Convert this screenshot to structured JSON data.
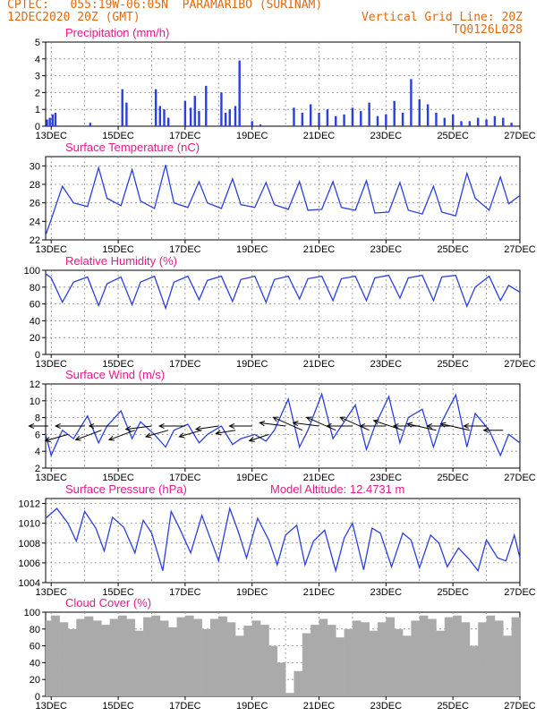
{
  "header": {
    "line1_left": "CPTEC:   055:19W-06:05N  PARAMARIBO (SURINAM)",
    "line2_left": "12DEC2020 20Z (GMT)",
    "line2_right": "Vertical Grid Line: 20Z",
    "line3_right": "TQ0126L028"
  },
  "colors": {
    "header": "#e06a10",
    "title": "#e8198b",
    "series": "#2a3fe0",
    "cloud": "#aaaaaa",
    "wind_arrow": "#000000"
  },
  "time_axis": {
    "start": "2020-12-12T20:00Z",
    "end": "2020-12-27T00:00Z",
    "tick_labels": [
      "13DEC",
      "15DEC",
      "17DEC",
      "19DEC",
      "21DEC",
      "23DEC",
      "25DEC",
      "27DEC"
    ],
    "tick_dates": [
      "2020-12-13",
      "2020-12-15",
      "2020-12-17",
      "2020-12-19",
      "2020-12-21",
      "2020-12-23",
      "2020-12-25",
      "2020-12-27"
    ],
    "grid_dates": [
      "2020-12-13",
      "2020-12-14",
      "2020-12-15",
      "2020-12-16",
      "2020-12-17",
      "2020-12-18",
      "2020-12-19",
      "2020-12-20",
      "2020-12-21",
      "2020-12-22",
      "2020-12-23",
      "2020-12-24",
      "2020-12-25",
      "2020-12-26",
      "2020-12-27"
    ]
  },
  "chart_data": [
    {
      "id": "precip",
      "type": "bar",
      "title": "Precipitation (mm/h)",
      "ylim": [
        0,
        5
      ],
      "yticks": [
        0,
        1,
        2,
        3,
        4,
        5
      ],
      "grid": true,
      "x": [
        "2020-12-12T21:00Z",
        "2020-12-12T23:00Z",
        "2020-12-13T01:00Z",
        "2020-12-13T03:00Z",
        "2020-12-14T04:00Z",
        "2020-12-15T03:00Z",
        "2020-12-15T06:00Z",
        "2020-12-16T03:00Z",
        "2020-12-16T06:00Z",
        "2020-12-16T09:00Z",
        "2020-12-16T12:00Z",
        "2020-12-17T00:00Z",
        "2020-12-17T04:00Z",
        "2020-12-17T07:00Z",
        "2020-12-17T10:00Z",
        "2020-12-17T15:00Z",
        "2020-12-18T02:00Z",
        "2020-12-18T05:00Z",
        "2020-12-18T08:00Z",
        "2020-12-18T12:00Z",
        "2020-12-18T15:00Z",
        "2020-12-19T00:00Z",
        "2020-12-19T06:00Z",
        "2020-12-20T06:00Z",
        "2020-12-20T12:00Z",
        "2020-12-20T18:00Z",
        "2020-12-21T00:00Z",
        "2020-12-21T06:00Z",
        "2020-12-21T12:00Z",
        "2020-12-21T18:00Z",
        "2020-12-22T00:00Z",
        "2020-12-22T06:00Z",
        "2020-12-22T12:00Z",
        "2020-12-22T18:00Z",
        "2020-12-23T00:00Z",
        "2020-12-23T06:00Z",
        "2020-12-23T12:00Z",
        "2020-12-23T18:00Z",
        "2020-12-24T00:00Z",
        "2020-12-24T06:00Z",
        "2020-12-24T12:00Z",
        "2020-12-24T18:00Z",
        "2020-12-25T00:00Z",
        "2020-12-25T06:00Z",
        "2020-12-25T12:00Z",
        "2020-12-25T18:00Z",
        "2020-12-26T00:00Z",
        "2020-12-26T06:00Z",
        "2020-12-26T12:00Z",
        "2020-12-26T18:00Z"
      ],
      "values": [
        0.4,
        0.5,
        0.7,
        0.8,
        0.2,
        2.2,
        1.4,
        2.2,
        1.2,
        1.0,
        0.5,
        1.5,
        1.1,
        1.8,
        0.9,
        2.4,
        2.0,
        0.8,
        1.0,
        1.2,
        3.9,
        0.3,
        0.1,
        1.1,
        0.8,
        1.3,
        0.8,
        1.0,
        0.6,
        0.7,
        1.1,
        0.9,
        1.4,
        0.6,
        0.7,
        1.5,
        0.8,
        2.8,
        1.6,
        1.3,
        0.8,
        0.5,
        0.7,
        0.3,
        0.3,
        0.5,
        0.4,
        0.6,
        0.5,
        0.2
      ]
    },
    {
      "id": "temp",
      "type": "line",
      "title": "Surface Temperature (nC)",
      "ylim": [
        22,
        31
      ],
      "yticks": [
        22,
        24,
        26,
        28,
        30
      ],
      "grid": true,
      "x": [
        "2020-12-12T20:00Z",
        "2020-12-13T00:00Z",
        "2020-12-13T08:00Z",
        "2020-12-13T16:00Z",
        "2020-12-14T02:00Z",
        "2020-12-14T10:00Z",
        "2020-12-14T16:00Z",
        "2020-12-15T02:00Z",
        "2020-12-15T10:00Z",
        "2020-12-15T16:00Z",
        "2020-12-16T02:00Z",
        "2020-12-16T10:00Z",
        "2020-12-16T16:00Z",
        "2020-12-17T02:00Z",
        "2020-12-17T10:00Z",
        "2020-12-17T16:00Z",
        "2020-12-18T02:00Z",
        "2020-12-18T10:00Z",
        "2020-12-18T16:00Z",
        "2020-12-19T02:00Z",
        "2020-12-19T10:00Z",
        "2020-12-19T16:00Z",
        "2020-12-20T02:00Z",
        "2020-12-20T10:00Z",
        "2020-12-20T16:00Z",
        "2020-12-21T02:00Z",
        "2020-12-21T10:00Z",
        "2020-12-21T16:00Z",
        "2020-12-22T02:00Z",
        "2020-12-22T10:00Z",
        "2020-12-22T16:00Z",
        "2020-12-23T02:00Z",
        "2020-12-23T10:00Z",
        "2020-12-23T16:00Z",
        "2020-12-24T02:00Z",
        "2020-12-24T10:00Z",
        "2020-12-24T16:00Z",
        "2020-12-25T02:00Z",
        "2020-12-25T10:00Z",
        "2020-12-25T16:00Z",
        "2020-12-26T02:00Z",
        "2020-12-26T10:00Z",
        "2020-12-26T16:00Z",
        "2020-12-27T00:00Z"
      ],
      "values": [
        22.5,
        24.2,
        27.8,
        26.0,
        25.6,
        29.8,
        26.5,
        25.7,
        29.6,
        26.2,
        25.4,
        30.1,
        26.0,
        25.5,
        28.3,
        26.0,
        25.4,
        28.6,
        25.8,
        25.5,
        28.2,
        25.8,
        25.3,
        28.3,
        25.2,
        25.3,
        28.3,
        25.5,
        25.2,
        28.4,
        24.9,
        25.0,
        28.2,
        25.2,
        24.8,
        27.8,
        25.0,
        24.6,
        29.2,
        26.5,
        25.2,
        28.8,
        25.9,
        26.8
      ]
    },
    {
      "id": "rh",
      "type": "line",
      "title": "Relative Humidity (%)",
      "ylim": [
        0,
        100
      ],
      "yticks": [
        0,
        20,
        40,
        60,
        80,
        100
      ],
      "grid": true,
      "x": [
        "2020-12-12T20:00Z",
        "2020-12-13T00:00Z",
        "2020-12-13T08:00Z",
        "2020-12-13T16:00Z",
        "2020-12-14T02:00Z",
        "2020-12-14T10:00Z",
        "2020-12-14T16:00Z",
        "2020-12-15T02:00Z",
        "2020-12-15T10:00Z",
        "2020-12-15T16:00Z",
        "2020-12-16T02:00Z",
        "2020-12-16T10:00Z",
        "2020-12-16T16:00Z",
        "2020-12-17T02:00Z",
        "2020-12-17T10:00Z",
        "2020-12-17T16:00Z",
        "2020-12-18T02:00Z",
        "2020-12-18T10:00Z",
        "2020-12-18T16:00Z",
        "2020-12-19T02:00Z",
        "2020-12-19T10:00Z",
        "2020-12-19T16:00Z",
        "2020-12-20T02:00Z",
        "2020-12-20T10:00Z",
        "2020-12-20T16:00Z",
        "2020-12-21T02:00Z",
        "2020-12-21T10:00Z",
        "2020-12-21T16:00Z",
        "2020-12-22T02:00Z",
        "2020-12-22T10:00Z",
        "2020-12-22T16:00Z",
        "2020-12-23T02:00Z",
        "2020-12-23T10:00Z",
        "2020-12-23T16:00Z",
        "2020-12-24T02:00Z",
        "2020-12-24T10:00Z",
        "2020-12-24T16:00Z",
        "2020-12-25T02:00Z",
        "2020-12-25T10:00Z",
        "2020-12-25T16:00Z",
        "2020-12-26T02:00Z",
        "2020-12-26T10:00Z",
        "2020-12-26T16:00Z",
        "2020-12-27T00:00Z"
      ],
      "values": [
        96,
        91,
        62,
        86,
        92,
        58,
        84,
        92,
        59,
        86,
        93,
        55,
        86,
        93,
        65,
        88,
        93,
        63,
        89,
        93,
        62,
        89,
        93,
        66,
        90,
        93,
        64,
        90,
        93,
        64,
        91,
        94,
        67,
        91,
        94,
        64,
        92,
        94,
        57,
        80,
        93,
        64,
        82,
        74
      ]
    },
    {
      "id": "wind",
      "type": "line",
      "title": "Surface Wind (m/s)",
      "ylim": [
        2,
        12
      ],
      "yticks": [
        2,
        4,
        6,
        8,
        10,
        12
      ],
      "grid": true,
      "x": [
        "2020-12-12T20:00Z",
        "2020-12-13T00:00Z",
        "2020-12-13T08:00Z",
        "2020-12-13T16:00Z",
        "2020-12-14T02:00Z",
        "2020-12-14T10:00Z",
        "2020-12-14T16:00Z",
        "2020-12-15T02:00Z",
        "2020-12-15T10:00Z",
        "2020-12-15T16:00Z",
        "2020-12-16T02:00Z",
        "2020-12-16T10:00Z",
        "2020-12-16T16:00Z",
        "2020-12-17T02:00Z",
        "2020-12-17T10:00Z",
        "2020-12-17T16:00Z",
        "2020-12-18T02:00Z",
        "2020-12-18T10:00Z",
        "2020-12-18T16:00Z",
        "2020-12-19T02:00Z",
        "2020-12-19T10:00Z",
        "2020-12-19T16:00Z",
        "2020-12-20T02:00Z",
        "2020-12-20T10:00Z",
        "2020-12-20T16:00Z",
        "2020-12-21T02:00Z",
        "2020-12-21T10:00Z",
        "2020-12-21T16:00Z",
        "2020-12-22T02:00Z",
        "2020-12-22T10:00Z",
        "2020-12-22T16:00Z",
        "2020-12-23T02:00Z",
        "2020-12-23T10:00Z",
        "2020-12-23T16:00Z",
        "2020-12-24T02:00Z",
        "2020-12-24T10:00Z",
        "2020-12-24T16:00Z",
        "2020-12-25T02:00Z",
        "2020-12-25T10:00Z",
        "2020-12-25T16:00Z",
        "2020-12-26T02:00Z",
        "2020-12-26T10:00Z",
        "2020-12-26T16:00Z",
        "2020-12-27T00:00Z"
      ],
      "values": [
        6.0,
        3.5,
        6.5,
        5.5,
        8.2,
        5.0,
        7.0,
        8.8,
        5.5,
        7.5,
        6.0,
        4.5,
        6.5,
        7.2,
        5.0,
        6.0,
        7.0,
        4.8,
        5.5,
        6.0,
        5.2,
        6.5,
        10.2,
        4.5,
        6.5,
        10.8,
        5.5,
        7.0,
        9.5,
        4.2,
        7.0,
        10.5,
        5.0,
        8.0,
        9.0,
        4.5,
        7.5,
        10.7,
        4.5,
        8.5,
        6.5,
        3.5,
        6.0,
        5.0
      ]
    },
    {
      "id": "pressure",
      "type": "line",
      "title": "Surface Pressure (hPa)",
      "annotation": "Model Altitude: 12.4731 m",
      "ylim": [
        1004,
        1012.5
      ],
      "yticks": [
        1004,
        1006,
        1008,
        1010,
        1012
      ],
      "grid": true,
      "x": [
        "2020-12-12T20:00Z",
        "2020-12-13T04:00Z",
        "2020-12-13T12:00Z",
        "2020-12-13T18:00Z",
        "2020-12-14T00:00Z",
        "2020-12-14T08:00Z",
        "2020-12-14T14:00Z",
        "2020-12-14T20:00Z",
        "2020-12-15T04:00Z",
        "2020-12-15T12:00Z",
        "2020-12-15T18:00Z",
        "2020-12-16T00:00Z",
        "2020-12-16T08:00Z",
        "2020-12-16T14:00Z",
        "2020-12-16T20:00Z",
        "2020-12-17T04:00Z",
        "2020-12-17T12:00Z",
        "2020-12-17T18:00Z",
        "2020-12-18T00:00Z",
        "2020-12-18T08:00Z",
        "2020-12-18T14:00Z",
        "2020-12-18T20:00Z",
        "2020-12-19T04:00Z",
        "2020-12-19T12:00Z",
        "2020-12-19T18:00Z",
        "2020-12-20T00:00Z",
        "2020-12-20T08:00Z",
        "2020-12-20T14:00Z",
        "2020-12-20T20:00Z",
        "2020-12-21T04:00Z",
        "2020-12-21T12:00Z",
        "2020-12-21T18:00Z",
        "2020-12-22T00:00Z",
        "2020-12-22T08:00Z",
        "2020-12-22T14:00Z",
        "2020-12-22T20:00Z",
        "2020-12-23T04:00Z",
        "2020-12-23T12:00Z",
        "2020-12-23T18:00Z",
        "2020-12-24T00:00Z",
        "2020-12-24T08:00Z",
        "2020-12-24T14:00Z",
        "2020-12-24T20:00Z",
        "2020-12-25T04:00Z",
        "2020-12-25T12:00Z",
        "2020-12-25T18:00Z",
        "2020-12-26T00:00Z",
        "2020-12-26T08:00Z",
        "2020-12-26T14:00Z",
        "2020-12-26T20:00Z",
        "2020-12-27T00:00Z"
      ],
      "values": [
        1010.5,
        1011.5,
        1010.0,
        1008.2,
        1011.2,
        1009.5,
        1007.2,
        1010.6,
        1009.6,
        1007.0,
        1010.3,
        1009.0,
        1005.2,
        1011.2,
        1009.5,
        1007.0,
        1010.8,
        1008.5,
        1006.2,
        1011.5,
        1009.2,
        1006.5,
        1010.5,
        1008.3,
        1005.8,
        1008.8,
        1009.8,
        1005.8,
        1008.2,
        1009.3,
        1005.2,
        1008.5,
        1010.0,
        1005.3,
        1009.5,
        1009.0,
        1005.6,
        1009.0,
        1008.3,
        1005.5,
        1008.8,
        1008.0,
        1005.6,
        1007.5,
        1006.3,
        1005.2,
        1008.3,
        1006.5,
        1006.2,
        1008.8,
        1006.5
      ]
    },
    {
      "id": "cloud",
      "type": "bar",
      "title": "Cloud Cover (%)",
      "ylim": [
        0,
        100
      ],
      "yticks": [
        0,
        20,
        40,
        60,
        80,
        100
      ],
      "grid": true,
      "x": [
        "2020-12-12T20:00Z",
        "2020-12-13T00:00Z",
        "2020-12-13T06:00Z",
        "2020-12-13T12:00Z",
        "2020-12-13T18:00Z",
        "2020-12-14T00:00Z",
        "2020-12-14T06:00Z",
        "2020-12-14T12:00Z",
        "2020-12-14T18:00Z",
        "2020-12-15T00:00Z",
        "2020-12-15T06:00Z",
        "2020-12-15T12:00Z",
        "2020-12-15T18:00Z",
        "2020-12-16T00:00Z",
        "2020-12-16T06:00Z",
        "2020-12-16T12:00Z",
        "2020-12-16T18:00Z",
        "2020-12-17T00:00Z",
        "2020-12-17T06:00Z",
        "2020-12-17T12:00Z",
        "2020-12-17T18:00Z",
        "2020-12-18T00:00Z",
        "2020-12-18T06:00Z",
        "2020-12-18T12:00Z",
        "2020-12-18T18:00Z",
        "2020-12-19T00:00Z",
        "2020-12-19T06:00Z",
        "2020-12-19T12:00Z",
        "2020-12-19T18:00Z",
        "2020-12-20T00:00Z",
        "2020-12-20T06:00Z",
        "2020-12-20T12:00Z",
        "2020-12-20T18:00Z",
        "2020-12-21T00:00Z",
        "2020-12-21T06:00Z",
        "2020-12-21T12:00Z",
        "2020-12-21T18:00Z",
        "2020-12-22T00:00Z",
        "2020-12-22T06:00Z",
        "2020-12-22T12:00Z",
        "2020-12-22T18:00Z",
        "2020-12-23T00:00Z",
        "2020-12-23T06:00Z",
        "2020-12-23T12:00Z",
        "2020-12-23T18:00Z",
        "2020-12-24T00:00Z",
        "2020-12-24T06:00Z",
        "2020-12-24T12:00Z",
        "2020-12-24T18:00Z",
        "2020-12-25T00:00Z",
        "2020-12-25T06:00Z",
        "2020-12-25T12:00Z",
        "2020-12-25T18:00Z",
        "2020-12-26T00:00Z",
        "2020-12-26T06:00Z",
        "2020-12-26T12:00Z",
        "2020-12-26T18:00Z",
        "2020-12-27T00:00Z"
      ],
      "values": [
        90,
        96,
        88,
        80,
        92,
        95,
        90,
        85,
        92,
        96,
        92,
        78,
        94,
        96,
        90,
        82,
        94,
        96,
        92,
        80,
        92,
        95,
        88,
        72,
        84,
        90,
        85,
        60,
        40,
        4,
        30,
        75,
        85,
        92,
        85,
        70,
        80,
        90,
        88,
        78,
        88,
        94,
        80,
        72,
        90,
        96,
        92,
        78,
        94,
        96,
        88,
        60,
        88,
        96,
        90,
        72,
        94,
        90
      ]
    },
    {
      "id": "wind_vectors",
      "type": "scatter",
      "title": "",
      "x": [
        "2020-12-12T22:00Z",
        "2020-12-13T12:00Z",
        "2020-12-14T00:00Z",
        "2020-12-14T12:00Z",
        "2020-12-15T00:00Z",
        "2020-12-15T12:00Z",
        "2020-12-16T00:00Z",
        "2020-12-16T12:00Z",
        "2020-12-17T00:00Z",
        "2020-12-17T12:00Z",
        "2020-12-18T00:00Z",
        "2020-12-18T12:00Z",
        "2020-12-19T00:00Z",
        "2020-12-19T12:00Z",
        "2020-12-20T00:00Z",
        "2020-12-20T12:00Z",
        "2020-12-21T00:00Z",
        "2020-12-21T12:00Z",
        "2020-12-22T00:00Z",
        "2020-12-22T12:00Z",
        "2020-12-23T00:00Z",
        "2020-12-23T12:00Z",
        "2020-12-24T00:00Z",
        "2020-12-24T12:00Z",
        "2020-12-25T00:00Z",
        "2020-12-25T12:00Z",
        "2020-12-26T00:00Z",
        "2020-12-26T12:00Z"
      ],
      "y": [
        7.0,
        6.0,
        7.0,
        6.5,
        7.0,
        6.5,
        7.0,
        6.5,
        7.0,
        6.5,
        7.0,
        6.5,
        7.0,
        6.0,
        7.0,
        6.5,
        7.0,
        6.5,
        7.0,
        6.5,
        7.0,
        6.5,
        7.0,
        6.5,
        7.0,
        6.5,
        7.0,
        6.5
      ],
      "u": [
        -6,
        -7,
        -9,
        -8,
        -9,
        -8,
        -8,
        -7,
        -8,
        -7,
        -7,
        -6,
        -7,
        -6,
        -8,
        -9,
        -8,
        -9,
        -8,
        -9,
        -8,
        -9,
        -8,
        -9,
        -8,
        -9,
        -7,
        -6
      ],
      "v": [
        0,
        -2,
        0,
        -3,
        0,
        -3,
        -1,
        -2,
        0,
        -2,
        -1,
        -1,
        0,
        -2,
        1,
        4,
        1,
        4,
        0,
        4,
        0,
        3,
        0,
        2,
        0,
        2,
        0,
        0
      ]
    }
  ]
}
